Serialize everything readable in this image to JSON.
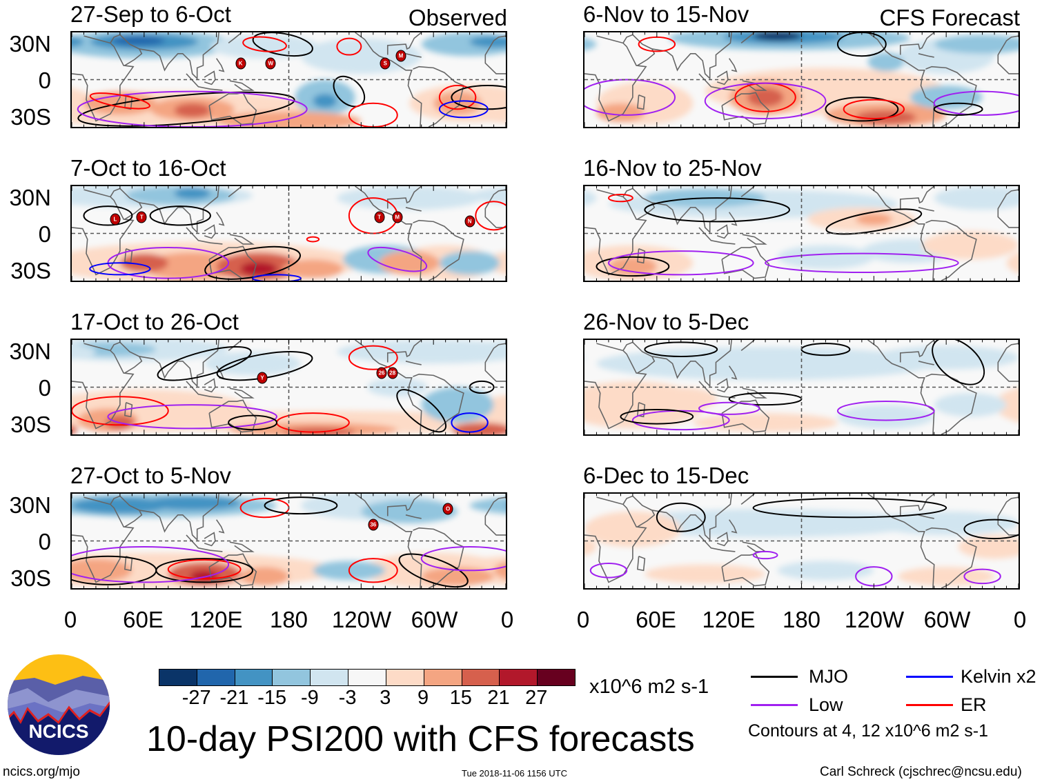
{
  "left_column_label": "Observed",
  "right_column_label": "CFS Forecast",
  "panels_left": [
    {
      "title": "27-Sep to 6-Oct",
      "storms": [
        "K",
        "W",
        "S",
        "M"
      ]
    },
    {
      "title": "7-Oct to 16-Oct",
      "storms": [
        "L",
        "T",
        "T",
        "M",
        "N"
      ]
    },
    {
      "title": "17-Oct to 26-Oct",
      "storms": [
        "Y",
        "26",
        "28"
      ]
    },
    {
      "title": "27-Oct to 5-Nov",
      "storms": [
        "36",
        "O"
      ]
    }
  ],
  "panels_right": [
    {
      "title": "6-Nov to 15-Nov"
    },
    {
      "title": "16-Nov to 25-Nov"
    },
    {
      "title": "26-Nov to 5-Dec"
    },
    {
      "title": "6-Dec to 15-Dec"
    }
  ],
  "lat_labels": [
    "30N",
    "0",
    "30S"
  ],
  "lon_labels": [
    "0",
    "60E",
    "120E",
    "180",
    "120W",
    "60W",
    "0"
  ],
  "colorbar": {
    "colors": [
      "#0a3468",
      "#2166ac",
      "#4393c3",
      "#92c5de",
      "#d1e5f0",
      "#f7f7f7",
      "#fddbc7",
      "#f4a582",
      "#d6604d",
      "#b2182b",
      "#67001f"
    ],
    "labels": [
      "-27",
      "-21",
      "-15",
      "-9",
      "-3",
      "3",
      "9",
      "15",
      "21",
      "27"
    ],
    "unit": "x10^6 m2 s-1"
  },
  "legend": {
    "items": [
      {
        "label": "MJO",
        "color": "#000000"
      },
      {
        "label": "Kelvin x2",
        "color": "#0000ff"
      },
      {
        "label": "Low",
        "color": "#a020f0"
      },
      {
        "label": "ER",
        "color": "#ff0000"
      }
    ],
    "note": "Contours at 4, 12 x10^6 m2 s-1"
  },
  "title": "10-day PSI200 with CFS forecasts",
  "logo_text": "NCICS",
  "footer": {
    "left": "ncics.org/mjo",
    "center": "Tue 2018-11-06 1156 UTC",
    "right": "Carl Schreck (cjschrec@ncsu.edu)"
  }
}
